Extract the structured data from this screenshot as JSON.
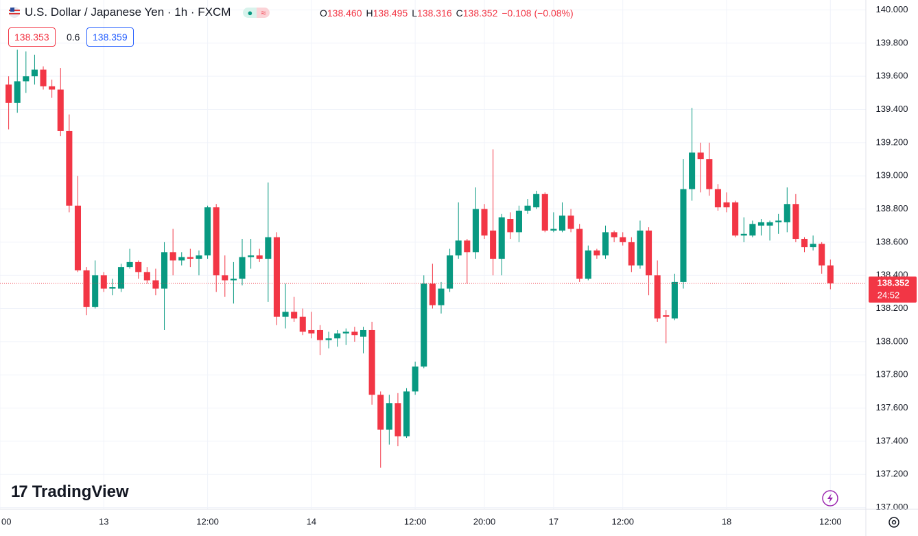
{
  "header": {
    "title": "U.S. Dollar / Japanese Yen · 1h · FXCM",
    "ohlc": [
      {
        "key": "O",
        "value": "138.460"
      },
      {
        "key": "H",
        "value": "138.495"
      },
      {
        "key": "L",
        "value": "138.316"
      },
      {
        "key": "C",
        "value": "138.352"
      }
    ],
    "change": "−0.108 (−0.08%)",
    "bid": "138.353",
    "spread": "0.6",
    "ask": "138.359",
    "countdown": "24:52",
    "logo": "TradingView"
  },
  "chart_data": {
    "type": "candlestick",
    "up_color": "#089981",
    "down_color": "#f23645",
    "grid": true,
    "xlim": [
      -1,
      99.1
    ],
    "ylim": [
      136.99,
      140.06
    ],
    "xticks": [
      {
        "value": -1,
        "label": "00"
      },
      {
        "value": 11,
        "label": "13"
      },
      {
        "value": 23,
        "label": "12:00"
      },
      {
        "value": 35,
        "label": "14"
      },
      {
        "value": 47,
        "label": "12:00"
      },
      {
        "value": 55,
        "label": "20:00"
      },
      {
        "value": 63,
        "label": "17"
      },
      {
        "value": 71,
        "label": "12:00"
      },
      {
        "value": 83,
        "label": "18"
      },
      {
        "value": 95,
        "label": "12:00"
      }
    ],
    "yticks": [
      {
        "value": 137,
        "label": "137.000"
      },
      {
        "value": 137.2,
        "label": "137.200"
      },
      {
        "value": 137.4,
        "label": "137.400"
      },
      {
        "value": 137.6,
        "label": "137.600"
      },
      {
        "value": 137.8,
        "label": "137.800"
      },
      {
        "value": 138,
        "label": "138.000"
      },
      {
        "value": 138.2,
        "label": "138.200"
      },
      {
        "value": 138.4,
        "label": "138.400"
      },
      {
        "value": 138.6,
        "label": "138.600"
      },
      {
        "value": 138.8,
        "label": "138.800"
      },
      {
        "value": 139,
        "label": "139.000"
      },
      {
        "value": 139.2,
        "label": "139.200"
      },
      {
        "value": 139.4,
        "label": "139.400"
      },
      {
        "value": 139.6,
        "label": "139.600"
      },
      {
        "value": 139.8,
        "label": "139.800"
      },
      {
        "value": 140,
        "label": "140.000"
      }
    ],
    "open": [
      139.55,
      139.44,
      139.57,
      139.6,
      139.64,
      139.54,
      139.52,
      139.27,
      138.82,
      138.43,
      138.21,
      138.4,
      138.32,
      138.32,
      138.45,
      138.48,
      138.42,
      138.37,
      138.32,
      138.54,
      138.49,
      138.51,
      138.5,
      138.52,
      138.81,
      138.4,
      138.37,
      138.38,
      138.51,
      138.52,
      138.5,
      138.63,
      138.15,
      138.18,
      138.15,
      138.07,
      138.07,
      138.01,
      138.02,
      138.05,
      138.06,
      138.03,
      138.07,
      137.68,
      137.47,
      137.63,
      137.43,
      137.7,
      137.85,
      138.35,
      138.22,
      138.32,
      138.52,
      138.61,
      138.54,
      138.8,
      138.67,
      138.5,
      138.74,
      138.66,
      138.79,
      138.81,
      138.89,
      138.67,
      138.67,
      138.76,
      138.68,
      138.38,
      138.55,
      138.52,
      138.66,
      138.63,
      138.6,
      138.46,
      138.67,
      138.4,
      138.16,
      138.14,
      138.36,
      138.92,
      139.14,
      139.1,
      138.92,
      138.84,
      138.84,
      138.64,
      138.64,
      138.7,
      138.7,
      138.72,
      138.72,
      138.83,
      138.62,
      138.57,
      138.59,
      138.46
    ],
    "high": [
      139.6,
      139.76,
      139.75,
      139.73,
      139.66,
      139.58,
      139.65,
      139.37,
      139.0,
      138.45,
      138.49,
      138.42,
      138.38,
      138.47,
      138.56,
      138.49,
      138.45,
      138.44,
      138.6,
      138.68,
      138.54,
      138.56,
      138.55,
      138.82,
      138.83,
      138.52,
      138.48,
      138.62,
      138.62,
      138.56,
      138.96,
      138.66,
      138.35,
      138.27,
      138.2,
      138.18,
      138.1,
      138.06,
      138.07,
      138.08,
      138.09,
      138.09,
      138.12,
      137.7,
      137.68,
      137.69,
      137.72,
      137.88,
      138.4,
      138.47,
      138.36,
      138.56,
      138.84,
      138.62,
      138.93,
      138.83,
      139.16,
      138.77,
      138.78,
      138.82,
      138.86,
      138.91,
      138.9,
      138.78,
      138.84,
      138.8,
      138.71,
      138.58,
      138.56,
      138.7,
      138.67,
      138.66,
      138.63,
      138.73,
      138.69,
      138.49,
      138.19,
      138.41,
      139.1,
      139.41,
      139.2,
      139.2,
      138.95,
      138.9,
      138.85,
      138.75,
      138.73,
      138.74,
      138.73,
      138.77,
      138.93,
      138.89,
      138.63,
      138.64,
      138.6,
      138.495
    ],
    "low": [
      139.28,
      139.38,
      139.5,
      139.55,
      139.52,
      139.47,
      139.24,
      138.78,
      138.42,
      138.16,
      138.2,
      138.3,
      138.28,
      138.3,
      138.44,
      138.38,
      138.35,
      138.28,
      138.07,
      138.4,
      138.46,
      138.45,
      138.4,
      138.5,
      138.3,
      138.27,
      138.23,
      138.34,
      138.44,
      138.48,
      138.24,
      138.1,
      138.08,
      138.12,
      138.04,
      138.02,
      137.92,
      137.96,
      137.97,
      137.98,
      138.0,
      137.93,
      137.62,
      137.24,
      137.38,
      137.37,
      137.42,
      137.68,
      137.84,
      138.2,
      138.17,
      138.3,
      138.5,
      138.35,
      138.5,
      138.62,
      138.4,
      138.4,
      138.62,
      138.6,
      138.77,
      138.8,
      138.66,
      138.66,
      138.66,
      138.66,
      138.36,
      138.37,
      138.5,
      138.5,
      138.6,
      138.58,
      138.42,
      138.44,
      138.28,
      138.12,
      137.99,
      138.13,
      138.32,
      138.85,
      138.9,
      138.88,
      138.79,
      138.78,
      138.63,
      138.6,
      138.63,
      138.64,
      138.61,
      138.65,
      138.66,
      138.6,
      138.54,
      138.55,
      138.41,
      138.316
    ],
    "close": [
      139.44,
      139.57,
      139.6,
      139.64,
      139.54,
      139.52,
      139.27,
      138.82,
      138.43,
      138.21,
      138.4,
      138.32,
      138.33,
      138.45,
      138.48,
      138.42,
      138.37,
      138.32,
      138.54,
      138.49,
      138.51,
      138.5,
      138.52,
      138.81,
      138.4,
      138.37,
      138.38,
      138.51,
      138.52,
      138.5,
      138.63,
      138.15,
      138.18,
      138.14,
      138.06,
      138.05,
      138.01,
      138.02,
      138.05,
      138.06,
      138.04,
      138.07,
      137.68,
      137.47,
      137.63,
      137.43,
      137.7,
      137.85,
      138.35,
      138.22,
      138.32,
      138.52,
      138.61,
      138.54,
      138.8,
      138.64,
      138.5,
      138.75,
      138.66,
      138.79,
      138.82,
      138.89,
      138.67,
      138.68,
      138.76,
      138.68,
      138.38,
      138.55,
      138.52,
      138.66,
      138.63,
      138.6,
      138.46,
      138.67,
      138.4,
      138.14,
      138.15,
      138.36,
      138.92,
      139.14,
      139.1,
      138.92,
      138.81,
      138.81,
      138.64,
      138.65,
      138.71,
      138.72,
      138.72,
      138.73,
      138.83,
      138.62,
      138.57,
      138.59,
      138.46,
      138.352
    ]
  }
}
